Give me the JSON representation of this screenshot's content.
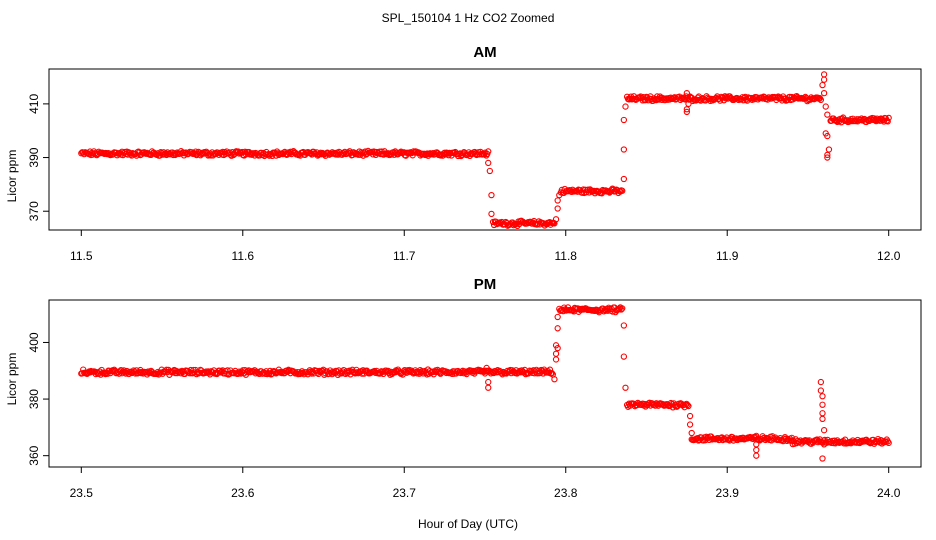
{
  "main_title": "SPL_150104  1 Hz CO2 Zoomed",
  "xlabel": "Hour of Day (UTC)",
  "chart_data": [
    {
      "type": "scatter",
      "title": "AM",
      "xlabel": "",
      "ylabel": "Licor ppm",
      "xlim": [
        11.5,
        12.0
      ],
      "ylim": [
        363,
        423
      ],
      "xticks": [
        "11.5",
        "11.6",
        "11.7",
        "11.8",
        "11.9",
        "12.0"
      ],
      "yticks": [
        "370",
        "390",
        "410"
      ],
      "marker": "open-circle",
      "color": "#ff0000",
      "segments": [
        {
          "x_start": 11.5,
          "x_end": 11.752,
          "y": 391.5
        },
        {
          "x_start": 11.755,
          "x_end": 11.793,
          "y": 365.5
        },
        {
          "x_start": 11.797,
          "x_end": 11.835,
          "y": 377.5
        },
        {
          "x_start": 11.838,
          "x_end": 11.958,
          "y": 412
        },
        {
          "x_start": 11.964,
          "x_end": 12.0,
          "y": 404
        }
      ],
      "transition_points": [
        [
          11.752,
          388
        ],
        [
          11.753,
          385
        ],
        [
          11.754,
          376
        ],
        [
          11.754,
          369
        ],
        [
          11.794,
          367
        ],
        [
          11.795,
          371
        ],
        [
          11.795,
          374
        ],
        [
          11.796,
          376
        ],
        [
          11.836,
          382
        ],
        [
          11.836,
          393
        ],
        [
          11.836,
          404
        ],
        [
          11.837,
          409
        ],
        [
          11.875,
          414
        ],
        [
          11.875,
          408
        ],
        [
          11.875,
          407
        ],
        [
          11.876,
          410
        ],
        [
          11.96,
          421
        ],
        [
          11.96,
          419
        ],
        [
          11.959,
          417
        ],
        [
          11.96,
          414
        ],
        [
          11.961,
          409
        ],
        [
          11.962,
          406
        ],
        [
          11.961,
          399
        ],
        [
          11.962,
          398
        ],
        [
          11.963,
          393
        ],
        [
          11.962,
          391
        ],
        [
          11.962,
          390
        ]
      ]
    },
    {
      "type": "scatter",
      "title": "PM",
      "xlabel": "",
      "ylabel": "Licor ppm",
      "xlim": [
        23.5,
        24.0
      ],
      "ylim": [
        356,
        415
      ],
      "xticks": [
        "23.5",
        "23.6",
        "23.7",
        "23.8",
        "23.9",
        "24.0"
      ],
      "yticks": [
        "360",
        "380",
        "400"
      ],
      "marker": "open-circle",
      "color": "#ff0000",
      "segments": [
        {
          "x_start": 23.5,
          "x_end": 23.792,
          "y": 389.5
        },
        {
          "x_start": 23.796,
          "x_end": 23.835,
          "y": 411.5
        },
        {
          "x_start": 23.838,
          "x_end": 23.876,
          "y": 378
        },
        {
          "x_start": 23.878,
          "x_end": 23.94,
          "y": 366
        },
        {
          "x_start": 23.94,
          "x_end": 24.0,
          "y": 365
        }
      ],
      "transition_points": [
        [
          23.751,
          391
        ],
        [
          23.752,
          386
        ],
        [
          23.752,
          384
        ],
        [
          23.793,
          387
        ],
        [
          23.794,
          394
        ],
        [
          23.794,
          396
        ],
        [
          23.795,
          398
        ],
        [
          23.794,
          399
        ],
        [
          23.795,
          405
        ],
        [
          23.795,
          409
        ],
        [
          23.836,
          406
        ],
        [
          23.836,
          395
        ],
        [
          23.837,
          384
        ],
        [
          23.877,
          374
        ],
        [
          23.877,
          371
        ],
        [
          23.878,
          368
        ],
        [
          23.918,
          367
        ],
        [
          23.918,
          364
        ],
        [
          23.918,
          362
        ],
        [
          23.918,
          360
        ],
        [
          23.958,
          386
        ],
        [
          23.958,
          383
        ],
        [
          23.959,
          381
        ],
        [
          23.959,
          378
        ],
        [
          23.959,
          375
        ],
        [
          23.959,
          373
        ],
        [
          23.96,
          369
        ],
        [
          23.96,
          364
        ],
        [
          23.959,
          359
        ]
      ]
    }
  ]
}
